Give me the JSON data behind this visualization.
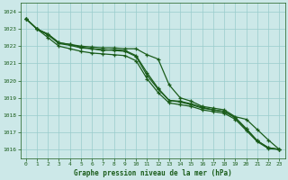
{
  "xlabel": "Graphe pression niveau de la mer (hPa)",
  "xlim": [
    -0.5,
    23.5
  ],
  "ylim": [
    1015.5,
    1024.5
  ],
  "yticks": [
    1016,
    1017,
    1018,
    1019,
    1020,
    1021,
    1022,
    1023,
    1024
  ],
  "xticks": [
    0,
    1,
    2,
    3,
    4,
    5,
    6,
    7,
    8,
    9,
    10,
    11,
    12,
    13,
    14,
    15,
    16,
    17,
    18,
    19,
    20,
    21,
    22,
    23
  ],
  "background_color": "#cce8e8",
  "grid_color": "#99cccc",
  "line_color": "#1a5c1a",
  "series": [
    [
      1023.6,
      1023.0,
      1022.7,
      1022.2,
      1022.1,
      1021.95,
      1021.85,
      1021.75,
      1021.8,
      1021.75,
      1021.45,
      1020.45,
      1019.55,
      1018.85,
      1018.8,
      1018.65,
      1018.45,
      1018.3,
      1018.2,
      1017.85,
      1017.2,
      1016.5,
      1016.1,
      1016.0
    ],
    [
      1023.6,
      1023.0,
      1022.65,
      1022.15,
      1022.05,
      1021.9,
      1021.85,
      1021.8,
      1021.75,
      1021.7,
      1021.4,
      1020.3,
      1019.5,
      1018.85,
      1018.75,
      1018.6,
      1018.4,
      1018.3,
      1018.2,
      1017.85,
      1017.2,
      1016.5,
      1016.1,
      1016.0
    ],
    [
      1023.6,
      1023.0,
      1022.7,
      1022.2,
      1022.1,
      1022.0,
      1021.95,
      1021.9,
      1021.9,
      1021.85,
      1021.85,
      1021.5,
      1021.25,
      1019.75,
      1019.0,
      1018.8,
      1018.5,
      1018.4,
      1018.3,
      1017.9,
      1017.75,
      1017.15,
      1016.55,
      1016.0
    ],
    [
      1023.6,
      1023.0,
      1022.5,
      1022.0,
      1021.85,
      1021.7,
      1021.6,
      1021.55,
      1021.5,
      1021.45,
      1021.15,
      1020.1,
      1019.3,
      1018.7,
      1018.6,
      1018.5,
      1018.3,
      1018.2,
      1018.1,
      1017.75,
      1017.1,
      1016.45,
      1016.05,
      1016.0
    ]
  ]
}
